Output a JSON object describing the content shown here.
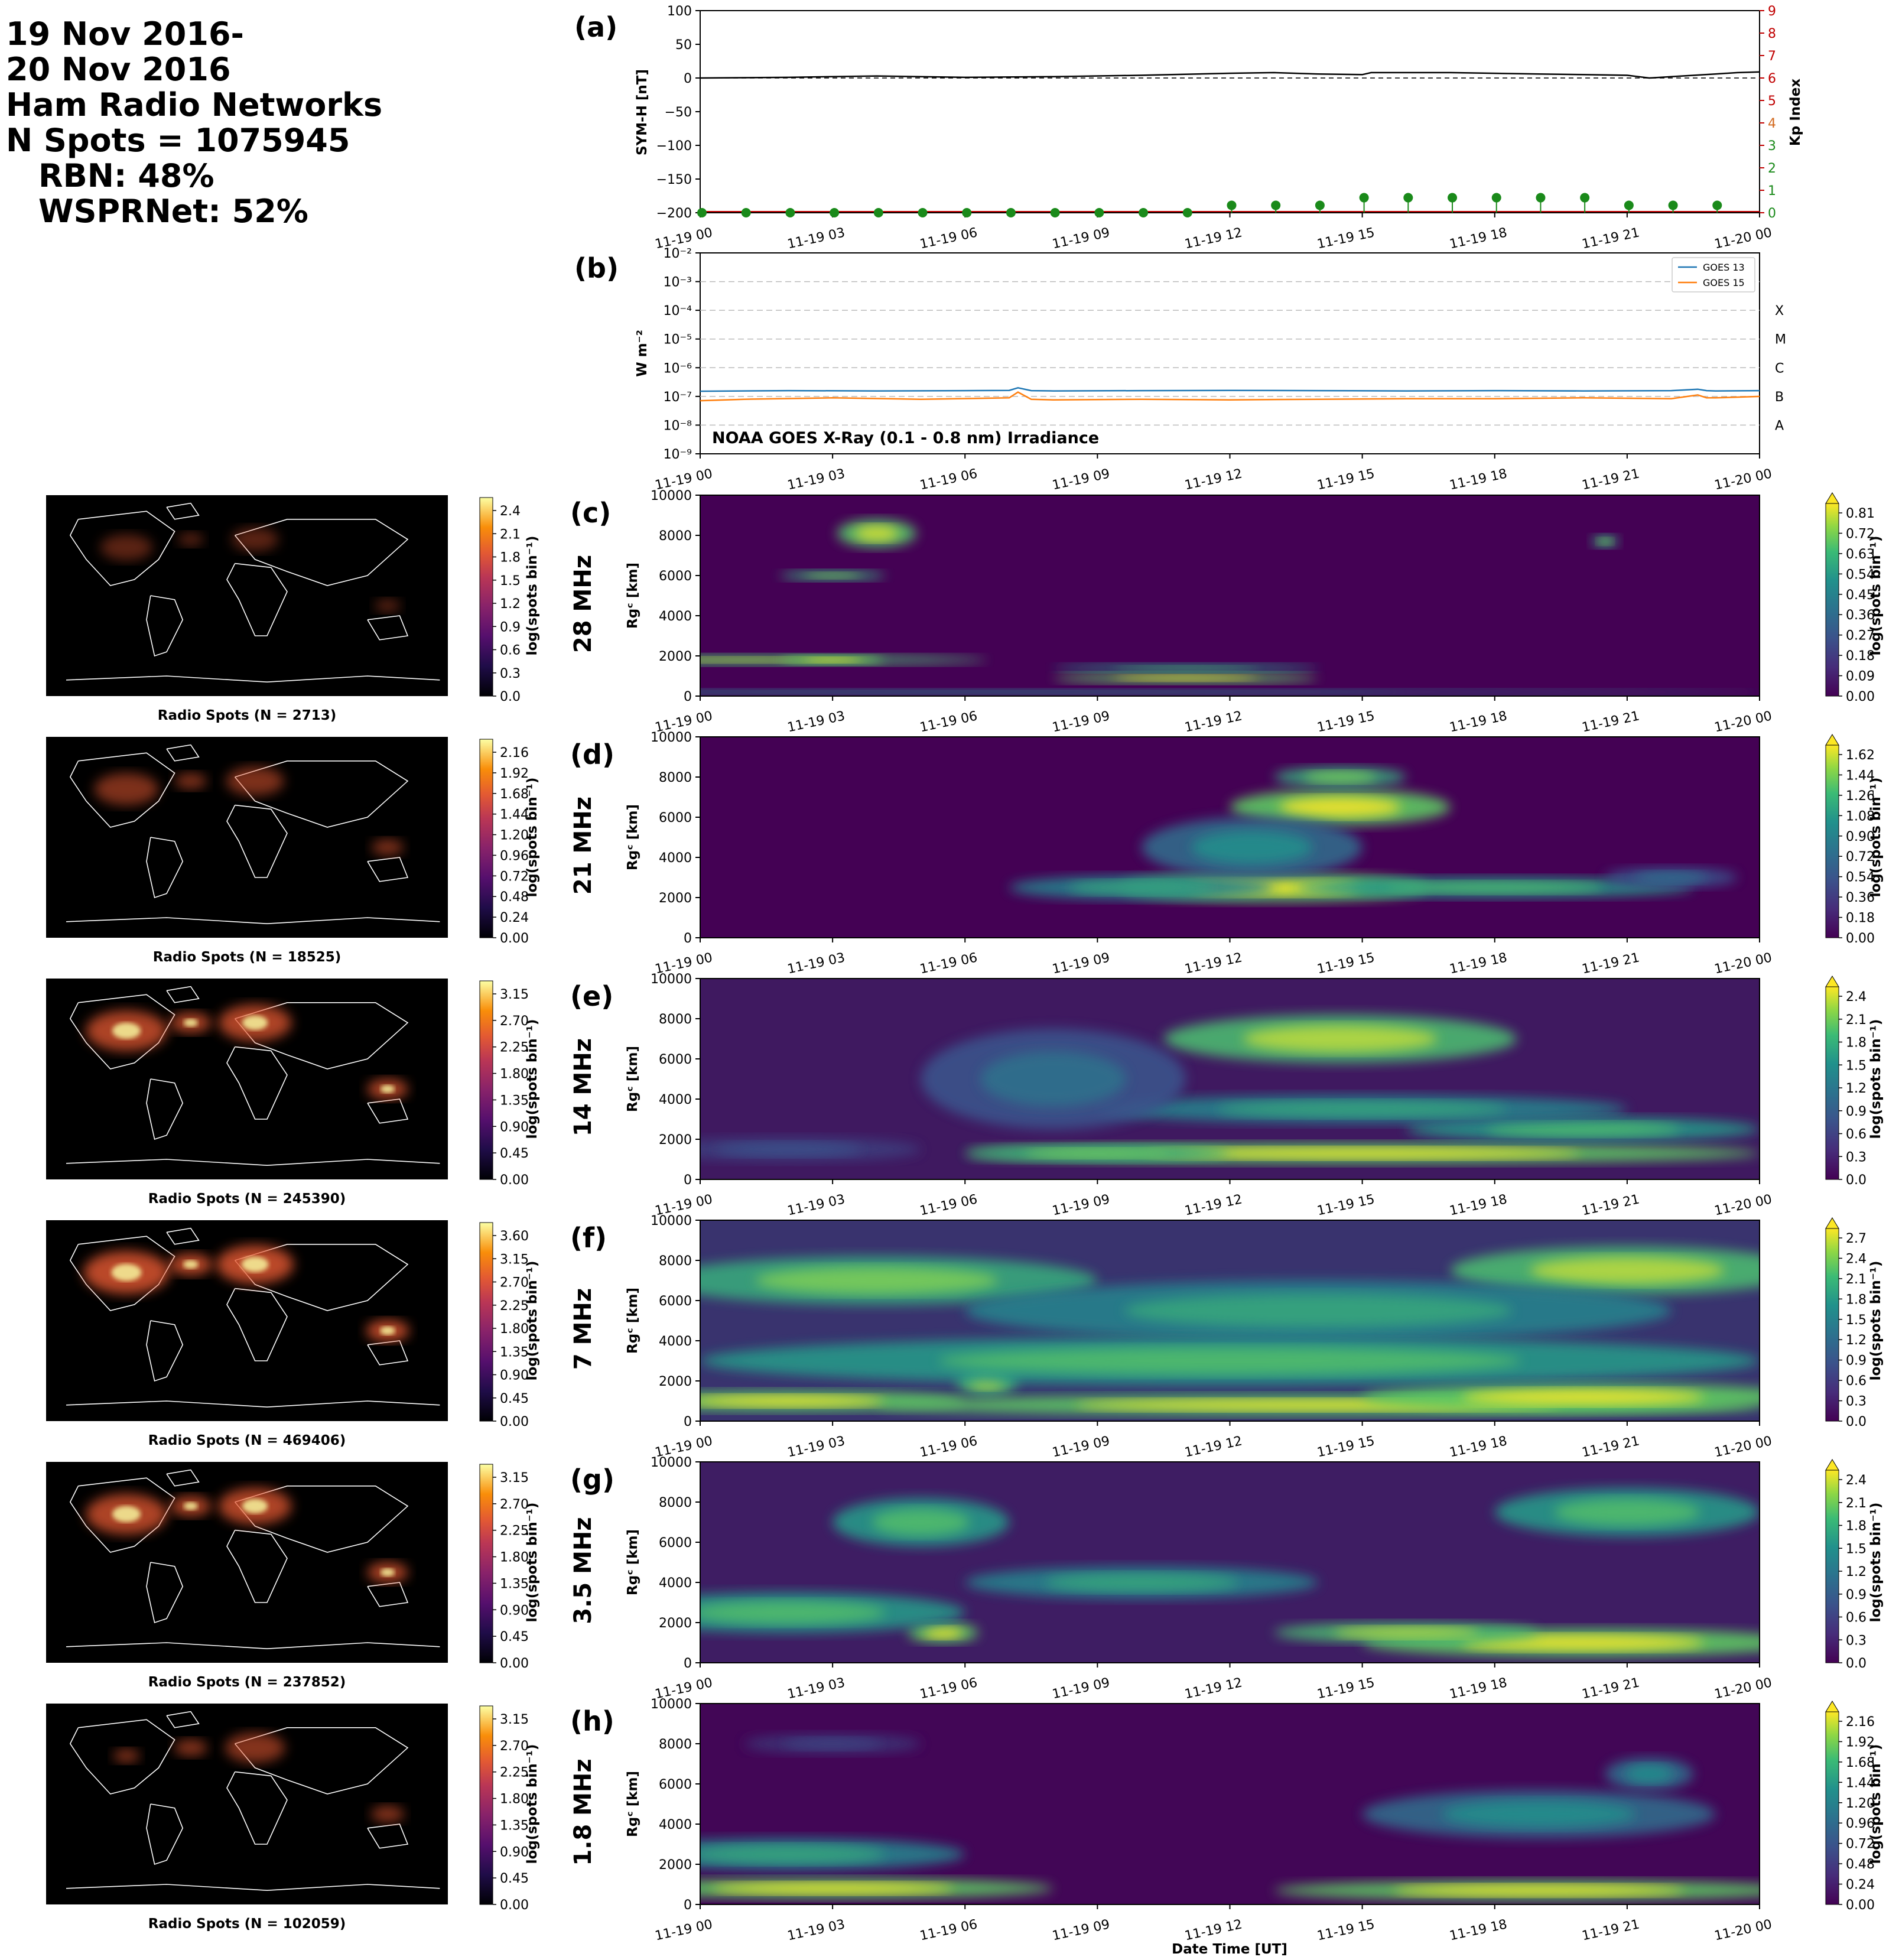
{
  "header": {
    "lines": [
      "19 Nov 2016-",
      "20 Nov 2016",
      "Ham Radio Networks",
      "N Spots = 1075945",
      "RBN: 48%",
      "WSPRNet: 52%"
    ]
  },
  "time_ticks": [
    "11-19 00",
    "11-19 03",
    "11-19 06",
    "11-19 09",
    "11-19 12",
    "11-19 15",
    "11-19 18",
    "11-19 21",
    "11-20 00"
  ],
  "xlabel": "Date Time [UT]",
  "panel_a": {
    "letter": "(a)",
    "ylabel_left": "SYM-H [nT]",
    "ylabel_right": "Kp Index",
    "yticks_left": [
      "100",
      "50",
      "0",
      "−50",
      "−100",
      "−150",
      "−200"
    ],
    "yticks_right": [
      "0",
      "1",
      "2",
      "3",
      "4",
      "5",
      "6",
      "7",
      "8",
      "9"
    ]
  },
  "panel_b": {
    "letter": "(b)",
    "ylabel": "W m⁻²",
    "yticks": [
      "10⁻²",
      "10⁻³",
      "10⁻⁴",
      "10⁻⁵",
      "10⁻⁶",
      "10⁻⁷",
      "10⁻⁸",
      "10⁻⁹"
    ],
    "classes": [
      "X",
      "M",
      "C",
      "B",
      "A"
    ],
    "legend": [
      "GOES 13",
      "GOES 15"
    ],
    "annotation": "NOAA GOES X-Ray (0.1 - 0.8 nm) Irradiance"
  },
  "rti_ylabel": "Rɡᶜ [km]",
  "rti_yticks": [
    "10000",
    "8000",
    "6000",
    "4000",
    "2000",
    "0"
  ],
  "cbar_label": "log(spots bin⁻¹)",
  "map_title_prefix": "Radio Spots (N = ",
  "map_title_suffix": ")",
  "bands": [
    {
      "letter": "(c)",
      "band": "28 MHz",
      "n": "2713",
      "map_ticks": [
        "2.4",
        "2.1",
        "1.8",
        "1.5",
        "1.2",
        "0.9",
        "0.6",
        "0.3",
        "0.0"
      ],
      "rti_ticks": [
        "0.81",
        "0.72",
        "0.63",
        "0.54",
        "0.45",
        "0.36",
        "0.27",
        "0.18",
        "0.09",
        "0.00"
      ]
    },
    {
      "letter": "(d)",
      "band": "21 MHz",
      "n": "18525",
      "map_ticks": [
        "2.16",
        "1.92",
        "1.68",
        "1.44",
        "1.20",
        "0.96",
        "0.72",
        "0.48",
        "0.24",
        "0.00"
      ],
      "rti_ticks": [
        "1.62",
        "1.44",
        "1.26",
        "1.08",
        "0.90",
        "0.72",
        "0.54",
        "0.36",
        "0.18",
        "0.00"
      ]
    },
    {
      "letter": "(e)",
      "band": "14 MHz",
      "n": "245390",
      "map_ticks": [
        "3.15",
        "2.70",
        "2.25",
        "1.80",
        "1.35",
        "0.90",
        "0.45",
        "0.00"
      ],
      "rti_ticks": [
        "2.4",
        "2.1",
        "1.8",
        "1.5",
        "1.2",
        "0.9",
        "0.6",
        "0.3",
        "0.0"
      ]
    },
    {
      "letter": "(f)",
      "band": "7 MHz",
      "n": "469406",
      "map_ticks": [
        "3.60",
        "3.15",
        "2.70",
        "2.25",
        "1.80",
        "1.35",
        "0.90",
        "0.45",
        "0.00"
      ],
      "rti_ticks": [
        "2.7",
        "2.4",
        "2.1",
        "1.8",
        "1.5",
        "1.2",
        "0.9",
        "0.6",
        "0.3",
        "0.0"
      ]
    },
    {
      "letter": "(g)",
      "band": "3.5 MHz",
      "n": "237852",
      "map_ticks": [
        "3.15",
        "2.70",
        "2.25",
        "1.80",
        "1.35",
        "0.90",
        "0.45",
        "0.00"
      ],
      "rti_ticks": [
        "2.4",
        "2.1",
        "1.8",
        "1.5",
        "1.2",
        "0.9",
        "0.6",
        "0.3",
        "0.0"
      ]
    },
    {
      "letter": "(h)",
      "band": "1.8 MHz",
      "n": "102059",
      "map_ticks": [
        "3.15",
        "2.70",
        "2.25",
        "1.80",
        "1.35",
        "0.90",
        "0.45",
        "0.00"
      ],
      "rti_ticks": [
        "2.16",
        "1.92",
        "1.68",
        "1.44",
        "1.20",
        "0.96",
        "0.72",
        "0.48",
        "0.24",
        "0.00"
      ]
    }
  ],
  "chart_data": [
    {
      "type": "line",
      "panel": "a",
      "x_range_hours": [
        0,
        24
      ],
      "ylim_left": [
        -200,
        100
      ],
      "ylim_right": [
        0,
        9
      ],
      "series": [
        {
          "name": "SYM-H",
          "color": "#000000",
          "x": [
            0,
            2,
            4,
            6,
            8,
            10,
            12,
            13,
            14,
            15,
            15.2,
            17,
            19,
            20,
            21,
            21.5,
            22,
            23,
            23.5,
            24
          ],
          "y": [
            0,
            1,
            3,
            1,
            2,
            4,
            7,
            8,
            6,
            5,
            8,
            8,
            6,
            5,
            4,
            0,
            2,
            6,
            8,
            9
          ]
        }
      ],
      "kp": {
        "color": "#1a8a1a",
        "x": [
          0,
          1,
          2,
          3,
          4,
          5,
          6,
          7,
          8,
          9,
          10,
          11,
          12,
          13,
          14,
          15,
          16,
          17,
          18,
          19,
          20,
          21,
          22,
          23
        ],
        "y": [
          0,
          0,
          0,
          0,
          0,
          0,
          0,
          0,
          0,
          0,
          0,
          0,
          0.33,
          0.33,
          0.33,
          0.67,
          0.67,
          0.67,
          0.67,
          0.67,
          0.67,
          0.33,
          0.33,
          0.33
        ]
      }
    },
    {
      "type": "line",
      "panel": "b",
      "yscale": "log",
      "ylim_exp": [
        -9,
        -2
      ],
      "series": [
        {
          "name": "GOES 13",
          "color": "#1f77b4",
          "x": [
            0,
            2,
            4,
            6,
            7,
            7.2,
            7.5,
            8,
            10,
            12,
            14,
            16,
            18,
            20,
            22,
            22.6,
            22.8,
            23,
            24
          ],
          "log10_y": [
            -6.82,
            -6.8,
            -6.81,
            -6.8,
            -6.79,
            -6.7,
            -6.8,
            -6.81,
            -6.8,
            -6.79,
            -6.8,
            -6.81,
            -6.8,
            -6.81,
            -6.8,
            -6.75,
            -6.8,
            -6.81,
            -6.8
          ]
        },
        {
          "name": "GOES 15",
          "color": "#ff7f0e",
          "x": [
            0,
            1,
            3,
            5,
            7,
            7.2,
            7.5,
            8,
            10,
            12,
            14,
            16,
            18,
            20,
            22,
            22.6,
            22.8,
            23,
            24
          ],
          "log10_y": [
            -7.15,
            -7.1,
            -7.05,
            -7.1,
            -7.05,
            -6.85,
            -7.1,
            -7.12,
            -7.1,
            -7.12,
            -7.1,
            -7.08,
            -7.08,
            -7.05,
            -7.08,
            -6.95,
            -7.05,
            -7.05,
            -7.0
          ]
        }
      ]
    }
  ]
}
